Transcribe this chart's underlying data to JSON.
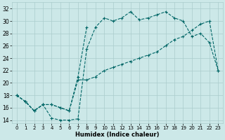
{
  "xlabel": "Humidex (Indice chaleur)",
  "bg_color": "#cce8e8",
  "grid_color": "#aacccc",
  "line_color": "#006666",
  "xlim": [
    -0.5,
    23.5
  ],
  "ylim": [
    13.5,
    33
  ],
  "xticks": [
    0,
    1,
    2,
    3,
    4,
    5,
    6,
    7,
    8,
    9,
    10,
    11,
    12,
    13,
    14,
    15,
    16,
    17,
    18,
    19,
    20,
    21,
    22,
    23
  ],
  "yticks": [
    14,
    16,
    18,
    20,
    22,
    24,
    26,
    28,
    30,
    32
  ],
  "series1_x": [
    0,
    1,
    2,
    3,
    4,
    5,
    6,
    7,
    8,
    9,
    10,
    11,
    12,
    13,
    14,
    15,
    16,
    17,
    18,
    19,
    20,
    21,
    22,
    23
  ],
  "series1_y": [
    18,
    17,
    15.5,
    16.5,
    14.3,
    14.0,
    14.0,
    14.2,
    25.5,
    29.0,
    30.5,
    30.0,
    30.5,
    31.5,
    30.2,
    30.5,
    31.0,
    31.5,
    30.5,
    30.0,
    27.5,
    28.0,
    26.5,
    22.0
  ],
  "series2_x": [
    0,
    1,
    2,
    3,
    4,
    5,
    6,
    7,
    8
  ],
  "series2_y": [
    18,
    17,
    15.5,
    16.5,
    16.5,
    16.0,
    15.5,
    21.0,
    29.0
  ],
  "series3_x": [
    0,
    1,
    2,
    3,
    4,
    5,
    6,
    7,
    8,
    9,
    10,
    11,
    12,
    13,
    14,
    15,
    16,
    17,
    18,
    19,
    20,
    21,
    22,
    23
  ],
  "series3_y": [
    18,
    17,
    15.5,
    16.5,
    16.5,
    16.0,
    15.5,
    20.5,
    20.5,
    21.0,
    22.0,
    22.5,
    23.0,
    23.5,
    24.0,
    24.5,
    25.0,
    26.0,
    27.0,
    27.5,
    28.5,
    29.5,
    30.0,
    22.0
  ]
}
